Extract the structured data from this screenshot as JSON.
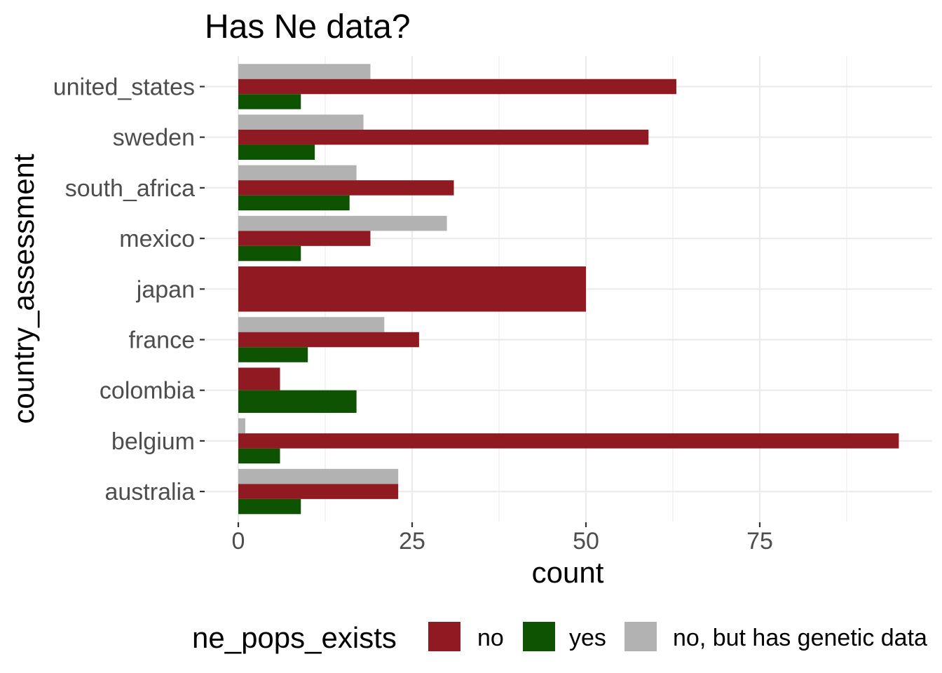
{
  "chart_data": {
    "type": "bar",
    "orientation": "horizontal",
    "title": "Has Ne data?",
    "xlabel": "count",
    "ylabel": "country_assessment",
    "categories": [
      "australia",
      "belgium",
      "colombia",
      "france",
      "japan",
      "mexico",
      "south_africa",
      "sweden",
      "united_states"
    ],
    "series": [
      {
        "name": "no",
        "color": "#8f1a22",
        "values": [
          23,
          95,
          6,
          26,
          50,
          19,
          31,
          59,
          63
        ]
      },
      {
        "name": "yes",
        "color": "#0d5302",
        "values": [
          9,
          6,
          17,
          10,
          null,
          9,
          16,
          11,
          9
        ]
      },
      {
        "name": "no, but has genetic data",
        "color": "#b2b2b2",
        "values": [
          23,
          1,
          null,
          21,
          null,
          30,
          17,
          18,
          19
        ]
      }
    ],
    "xlim": [
      0,
      100
    ],
    "xticks": [
      0,
      25,
      50,
      75
    ],
    "grid": true,
    "legend": {
      "title": "ne_pops_exists",
      "position": "bottom"
    }
  }
}
